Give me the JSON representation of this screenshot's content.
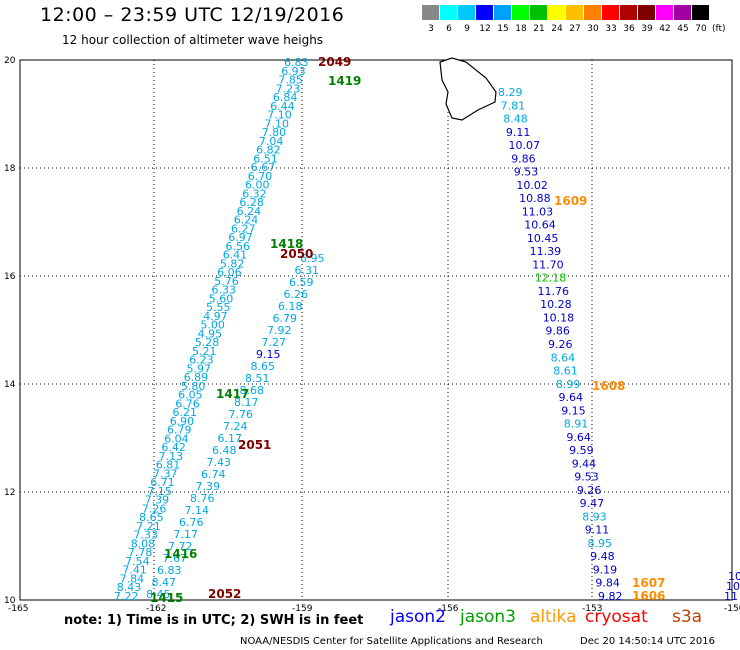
{
  "title": "12:00 – 23:59 UTC 12/19/2016",
  "subtitle": "12 hour collection of altimeter wave heighs",
  "legend": {
    "unit": "(ft)",
    "colors": [
      "#888888",
      "#00ffff",
      "#00c8ff",
      "#0000ff",
      "#00a0ff",
      "#00ff00",
      "#00c000",
      "#ffff00",
      "#ffc000",
      "#ff8000",
      "#ff0000",
      "#b00000",
      "#800000",
      "#ff00ff",
      "#a000a0",
      "#000000"
    ],
    "labels": [
      "3",
      "6",
      "9",
      "12",
      "15",
      "18",
      "21",
      "24",
      "27",
      "30",
      "33",
      "36",
      "39",
      "42",
      "45",
      "70"
    ]
  },
  "axes": {
    "y_ticks": [
      "20",
      "18",
      "16",
      "14",
      "12",
      "10"
    ],
    "x_ticks": [
      "-165",
      "-162",
      "-159",
      "-156",
      "-153",
      "-150"
    ]
  },
  "tracks": {
    "track1": [
      "6.83",
      "6.93",
      "7.85",
      "7.23",
      "6.84",
      "6.44",
      "7.10",
      "7.10",
      "7.80",
      "7.04",
      "6.82",
      "6.51",
      "6.67",
      "6.70",
      "6.00",
      "6.32",
      "6.28",
      "6.24",
      "6.24",
      "6.27",
      "6.97",
      "6.56",
      "6.41",
      "5.82",
      "6.06",
      "5.76",
      "6.33",
      "5.60",
      "5.55",
      "4.97",
      "5.00",
      "4.95",
      "5.28",
      "5.21",
      "6.23",
      "5.97",
      "6.89",
      "5.80",
      "6.05",
      "6.76",
      "6.21",
      "6.90",
      "6.79",
      "6.04",
      "6.42",
      "7.13",
      "6.81",
      "7.37",
      "6.71",
      "7.15",
      "7.39",
      "7.26",
      "8.65",
      "7.21",
      "7.33",
      "8.08",
      "7.78",
      "7.54",
      "7.41",
      "7.84",
      "8.43",
      "7.22"
    ],
    "track2": [
      "6.95",
      "6.31",
      "6.59",
      "6.26",
      "6.18",
      "6.79",
      "7.92",
      "7.27",
      "9.15",
      "8.65",
      "8.51",
      "8.68",
      "8.17",
      "7.76",
      "7.24",
      "6.17",
      "6.48",
      "7.43",
      "6.74",
      "7.39",
      "8.76",
      "7.14",
      "6.76",
      "7.17",
      "7.72",
      "7.67",
      "6.83",
      "8.47",
      "8.45"
    ],
    "track3": [
      "8.29",
      "7.81",
      "8.48",
      "9.11",
      "10.07",
      "9.86",
      "9.53",
      "10.02",
      "10.88",
      "11.03",
      "10.64",
      "10.45",
      "11.39",
      "11.70",
      "12.18",
      "11.76",
      "10.28",
      "10.18",
      "9.86",
      "9.26",
      "8.64",
      "8.61",
      "8.99",
      "9.64",
      "9.15",
      "8.91",
      "9.64",
      "9.59",
      "9.44",
      "9.53",
      "9.26",
      "9.47",
      "8.93",
      "9.11",
      "8.95",
      "9.48",
      "9.19",
      "9.84",
      "9.82"
    ],
    "track4": [
      "10",
      "10",
      "11"
    ]
  },
  "passes": [
    "2049",
    "1419",
    "1418",
    "2050",
    "1417",
    "2051",
    "1416",
    "1415",
    "2052",
    "1609",
    "1608",
    "1607",
    "1606"
  ],
  "note": "note: 1) Time is in UTC; 2) SWH is in feet",
  "satellites": [
    "jason2",
    "jason3",
    "altika",
    "cryosat",
    "s3a"
  ],
  "satellite_colors": [
    "#0000ff",
    "#00a000",
    "#ff9900",
    "#ff0000",
    "#c04000"
  ],
  "credit": "NOAA/NESDIS Center for Satellite Applications and Research",
  "timestamp": "Dec 20 14:50:14 UTC 2016"
}
